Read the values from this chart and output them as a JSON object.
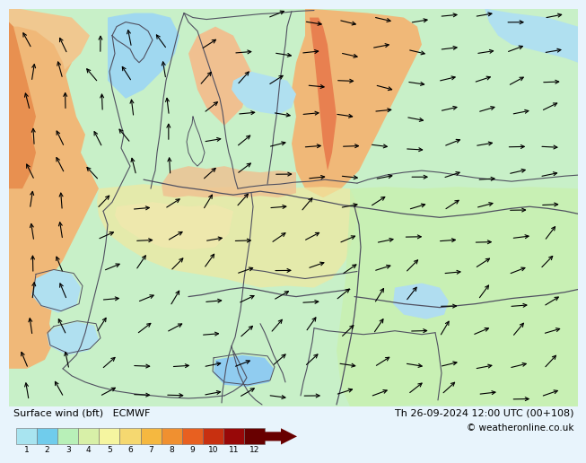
{
  "title_left": "Surface wind (bft)   ECMWF",
  "title_right": "Th 26-09-2024 12:00 UTC (00+108)",
  "title_right2": "© weatheronline.co.uk",
  "colorbar_values": [
    1,
    2,
    3,
    4,
    5,
    6,
    7,
    8,
    9,
    10,
    11,
    12
  ],
  "colorbar_colors": [
    "#a8e4f0",
    "#70ccec",
    "#b8f0b8",
    "#d8f0a8",
    "#f5f5a0",
    "#f5d870",
    "#f5b840",
    "#f09030",
    "#e86020",
    "#c83010",
    "#980808",
    "#680000"
  ],
  "background_color": "#c8f0c8",
  "fig_bg": "#ffffff",
  "map_bg": "#c8f0c8",
  "legend_bg": "#e8f4fc"
}
